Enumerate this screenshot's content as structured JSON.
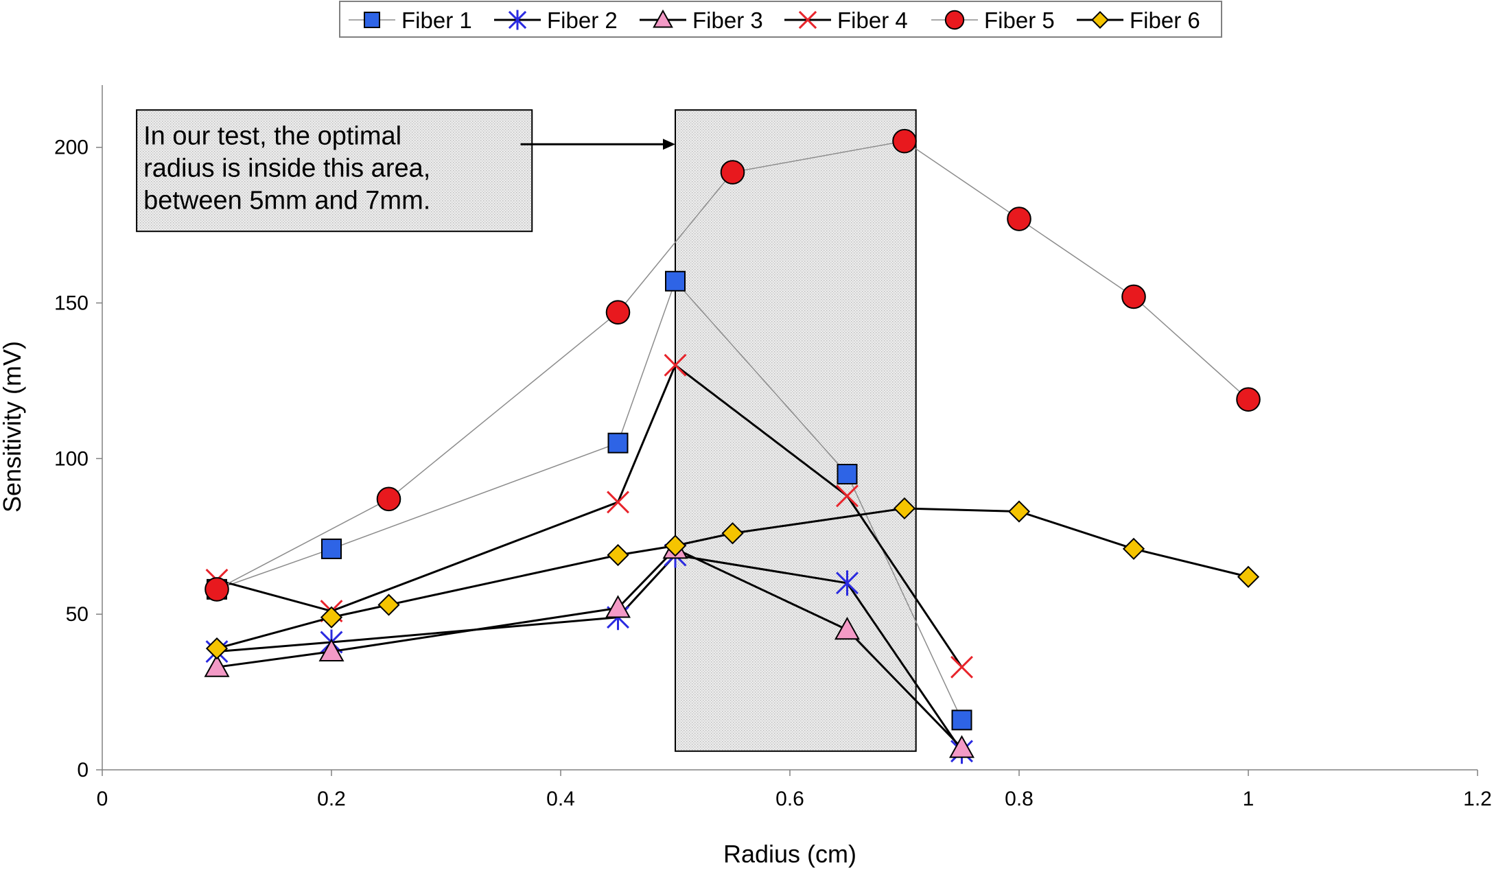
{
  "chart_data": {
    "type": "scatter",
    "xlabel": "Radius (cm)",
    "ylabel": "Sensitivity (mV)",
    "xlim": [
      0,
      1.2
    ],
    "ylim": [
      0,
      220
    ],
    "xticks": [
      0,
      0.2,
      0.4,
      0.6,
      0.8,
      1,
      1.2
    ],
    "xtick_labels": [
      "0",
      "0.2",
      "0.4",
      "0.6",
      "0.8",
      "1",
      "1.2"
    ],
    "yticks": [
      0,
      50,
      100,
      150,
      200
    ],
    "ytick_labels": [
      "0",
      "50",
      "100",
      "150",
      "200"
    ],
    "grid": false,
    "legend_position": "top",
    "series": [
      {
        "name": "Fiber 1",
        "marker": "square",
        "color": "#2e64e6",
        "line_color": "#8c8c8c",
        "line_width": 1.5,
        "x": [
          0.1,
          0.2,
          0.45,
          0.5,
          0.65,
          0.75
        ],
        "y": [
          58,
          71,
          105,
          157,
          95,
          16
        ]
      },
      {
        "name": "Fiber 2",
        "marker": "asterisk",
        "color": "#2a2ae0",
        "line_color": "#000000",
        "line_width": 3,
        "x": [
          0.1,
          0.2,
          0.45,
          0.5,
          0.65,
          0.75
        ],
        "y": [
          38,
          41,
          49,
          69,
          60,
          6
        ]
      },
      {
        "name": "Fiber 3",
        "marker": "triangle",
        "color": "#f39ac6",
        "line_color": "#000000",
        "line_width": 3,
        "x": [
          0.1,
          0.2,
          0.45,
          0.5,
          0.65,
          0.75
        ],
        "y": [
          33,
          38,
          52,
          71,
          45,
          7
        ]
      },
      {
        "name": "Fiber 4",
        "marker": "x",
        "color": "#e8242b",
        "line_color": "#000000",
        "line_width": 3,
        "x": [
          0.1,
          0.2,
          0.45,
          0.5,
          0.65,
          0.75
        ],
        "y": [
          61,
          51,
          86,
          130,
          88,
          33
        ]
      },
      {
        "name": "Fiber 5",
        "marker": "circle",
        "color": "#e8191e",
        "line_color": "#8c8c8c",
        "line_width": 1.5,
        "x": [
          0.1,
          0.25,
          0.45,
          0.55,
          0.7,
          0.8,
          0.9,
          1.0
        ],
        "y": [
          58,
          87,
          147,
          192,
          202,
          177,
          152,
          119
        ]
      },
      {
        "name": "Fiber 6",
        "marker": "diamond",
        "color": "#f5c400",
        "line_color": "#000000",
        "line_width": 3,
        "x": [
          0.1,
          0.2,
          0.25,
          0.45,
          0.5,
          0.55,
          0.7,
          0.8,
          0.9,
          1.0
        ],
        "y": [
          39,
          49,
          53,
          69,
          72,
          76,
          84,
          83,
          71,
          62
        ]
      }
    ],
    "highlight_region": {
      "x": [
        0.5,
        0.71
      ],
      "y": [
        6,
        212
      ],
      "fill": "#e6e6e6"
    },
    "annotation": {
      "lines": [
        "In our test, the optimal",
        "radius is inside this area,",
        "between 5mm and 7mm."
      ],
      "box_x": [
        0.03,
        0.375
      ],
      "box_y": [
        173,
        212
      ],
      "arrow_from": [
        0.365,
        201
      ],
      "arrow_to": [
        0.5,
        201
      ]
    }
  }
}
